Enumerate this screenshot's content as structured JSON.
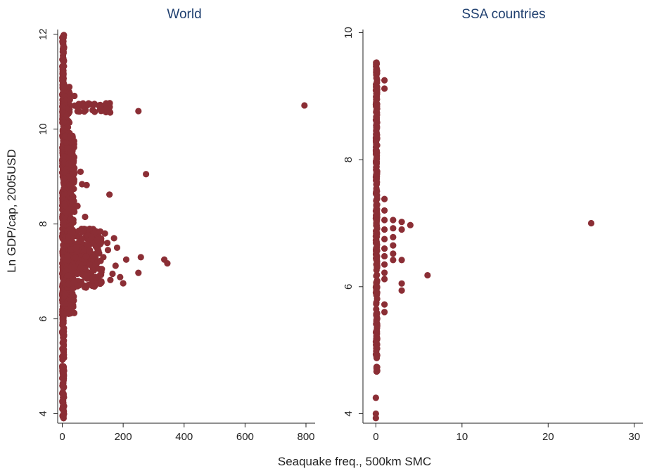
{
  "chart_data": {
    "type": "scatter",
    "ylabel": "Ln GDP/cap, 2005USD",
    "xlabel": "Seaquake freq., 500km SMC",
    "marker_color": "#8b2e35",
    "title_color": "#1f3f6f",
    "grid": false,
    "panels": [
      {
        "title": "World",
        "xlim": [
          -15,
          830
        ],
        "ylim": [
          3.8,
          12.1
        ],
        "xticks": [
          0,
          200,
          400,
          600,
          800
        ],
        "yticks": [
          4,
          6,
          8,
          10,
          12
        ],
        "clusters": [
          {
            "x_min": 0,
            "x_max": 6,
            "y_min": 3.9,
            "y_max": 12.0,
            "count": 420
          },
          {
            "x_min": 3,
            "x_max": 40,
            "y_min": 6.1,
            "y_max": 9.9,
            "count": 420
          },
          {
            "x_min": 0,
            "x_max": 25,
            "y_min": 9.8,
            "y_max": 10.95,
            "count": 60
          },
          {
            "x_min": 10,
            "x_max": 130,
            "y_min": 6.65,
            "y_max": 7.9,
            "count": 260
          },
          {
            "x_min": 40,
            "x_max": 160,
            "y_min": 10.35,
            "y_max": 10.55,
            "count": 30
          }
        ],
        "points": [
          {
            "x": 795,
            "y": 10.5
          },
          {
            "x": 250,
            "y": 10.38
          },
          {
            "x": 275,
            "y": 9.05
          },
          {
            "x": 155,
            "y": 8.62
          },
          {
            "x": 345,
            "y": 7.17
          },
          {
            "x": 335,
            "y": 7.25
          },
          {
            "x": 258,
            "y": 7.3
          },
          {
            "x": 250,
            "y": 6.97
          },
          {
            "x": 200,
            "y": 6.75
          },
          {
            "x": 190,
            "y": 6.88
          },
          {
            "x": 175,
            "y": 7.12
          },
          {
            "x": 165,
            "y": 6.95
          },
          {
            "x": 158,
            "y": 6.82
          },
          {
            "x": 150,
            "y": 7.45
          },
          {
            "x": 148,
            "y": 7.6
          },
          {
            "x": 140,
            "y": 7.8
          },
          {
            "x": 135,
            "y": 7.3
          },
          {
            "x": 130,
            "y": 7.05
          },
          {
            "x": 125,
            "y": 10.47
          },
          {
            "x": 145,
            "y": 10.43
          },
          {
            "x": 120,
            "y": 10.5
          },
          {
            "x": 60,
            "y": 9.1
          },
          {
            "x": 80,
            "y": 8.82
          },
          {
            "x": 65,
            "y": 8.84
          },
          {
            "x": 75,
            "y": 8.15
          },
          {
            "x": 50,
            "y": 8.38
          },
          {
            "x": 30,
            "y": 6.2
          },
          {
            "x": 40,
            "y": 10.7
          },
          {
            "x": 25,
            "y": 10.62
          },
          {
            "x": 62,
            "y": 10.52
          },
          {
            "x": 180,
            "y": 7.5
          },
          {
            "x": 170,
            "y": 7.7
          },
          {
            "x": 210,
            "y": 7.25
          },
          {
            "x": 110,
            "y": 6.88
          }
        ]
      },
      {
        "title": "SSA countries",
        "xlim": [
          -1.5,
          31
        ],
        "ylim": [
          3.85,
          10.05
        ],
        "xticks": [
          0,
          10,
          20,
          30
        ],
        "yticks": [
          4,
          6,
          8,
          10
        ],
        "clusters": [
          {
            "x_min": 0,
            "x_max": 0.15,
            "y_min": 4.65,
            "y_max": 9.55,
            "count": 300
          }
        ],
        "points": [
          {
            "x": 0,
            "y": 4.25
          },
          {
            "x": 0,
            "y": 4.0
          },
          {
            "x": 0,
            "y": 3.93
          },
          {
            "x": 1,
            "y": 9.25
          },
          {
            "x": 1,
            "y": 9.12
          },
          {
            "x": 1,
            "y": 7.38
          },
          {
            "x": 1,
            "y": 7.2
          },
          {
            "x": 1,
            "y": 7.05
          },
          {
            "x": 1,
            "y": 6.9
          },
          {
            "x": 1,
            "y": 6.75
          },
          {
            "x": 1,
            "y": 6.6
          },
          {
            "x": 1,
            "y": 6.48
          },
          {
            "x": 1,
            "y": 6.35
          },
          {
            "x": 1,
            "y": 6.22
          },
          {
            "x": 1,
            "y": 6.12
          },
          {
            "x": 1,
            "y": 5.72
          },
          {
            "x": 1,
            "y": 5.6
          },
          {
            "x": 2,
            "y": 7.05
          },
          {
            "x": 2,
            "y": 6.92
          },
          {
            "x": 2,
            "y": 6.78
          },
          {
            "x": 2,
            "y": 6.65
          },
          {
            "x": 2,
            "y": 6.52
          },
          {
            "x": 2,
            "y": 6.42
          },
          {
            "x": 3,
            "y": 7.02
          },
          {
            "x": 3,
            "y": 6.9
          },
          {
            "x": 3,
            "y": 6.42
          },
          {
            "x": 3,
            "y": 6.05
          },
          {
            "x": 3,
            "y": 5.94
          },
          {
            "x": 4,
            "y": 6.97
          },
          {
            "x": 6,
            "y": 6.18
          },
          {
            "x": 25,
            "y": 7.0
          }
        ]
      }
    ]
  }
}
